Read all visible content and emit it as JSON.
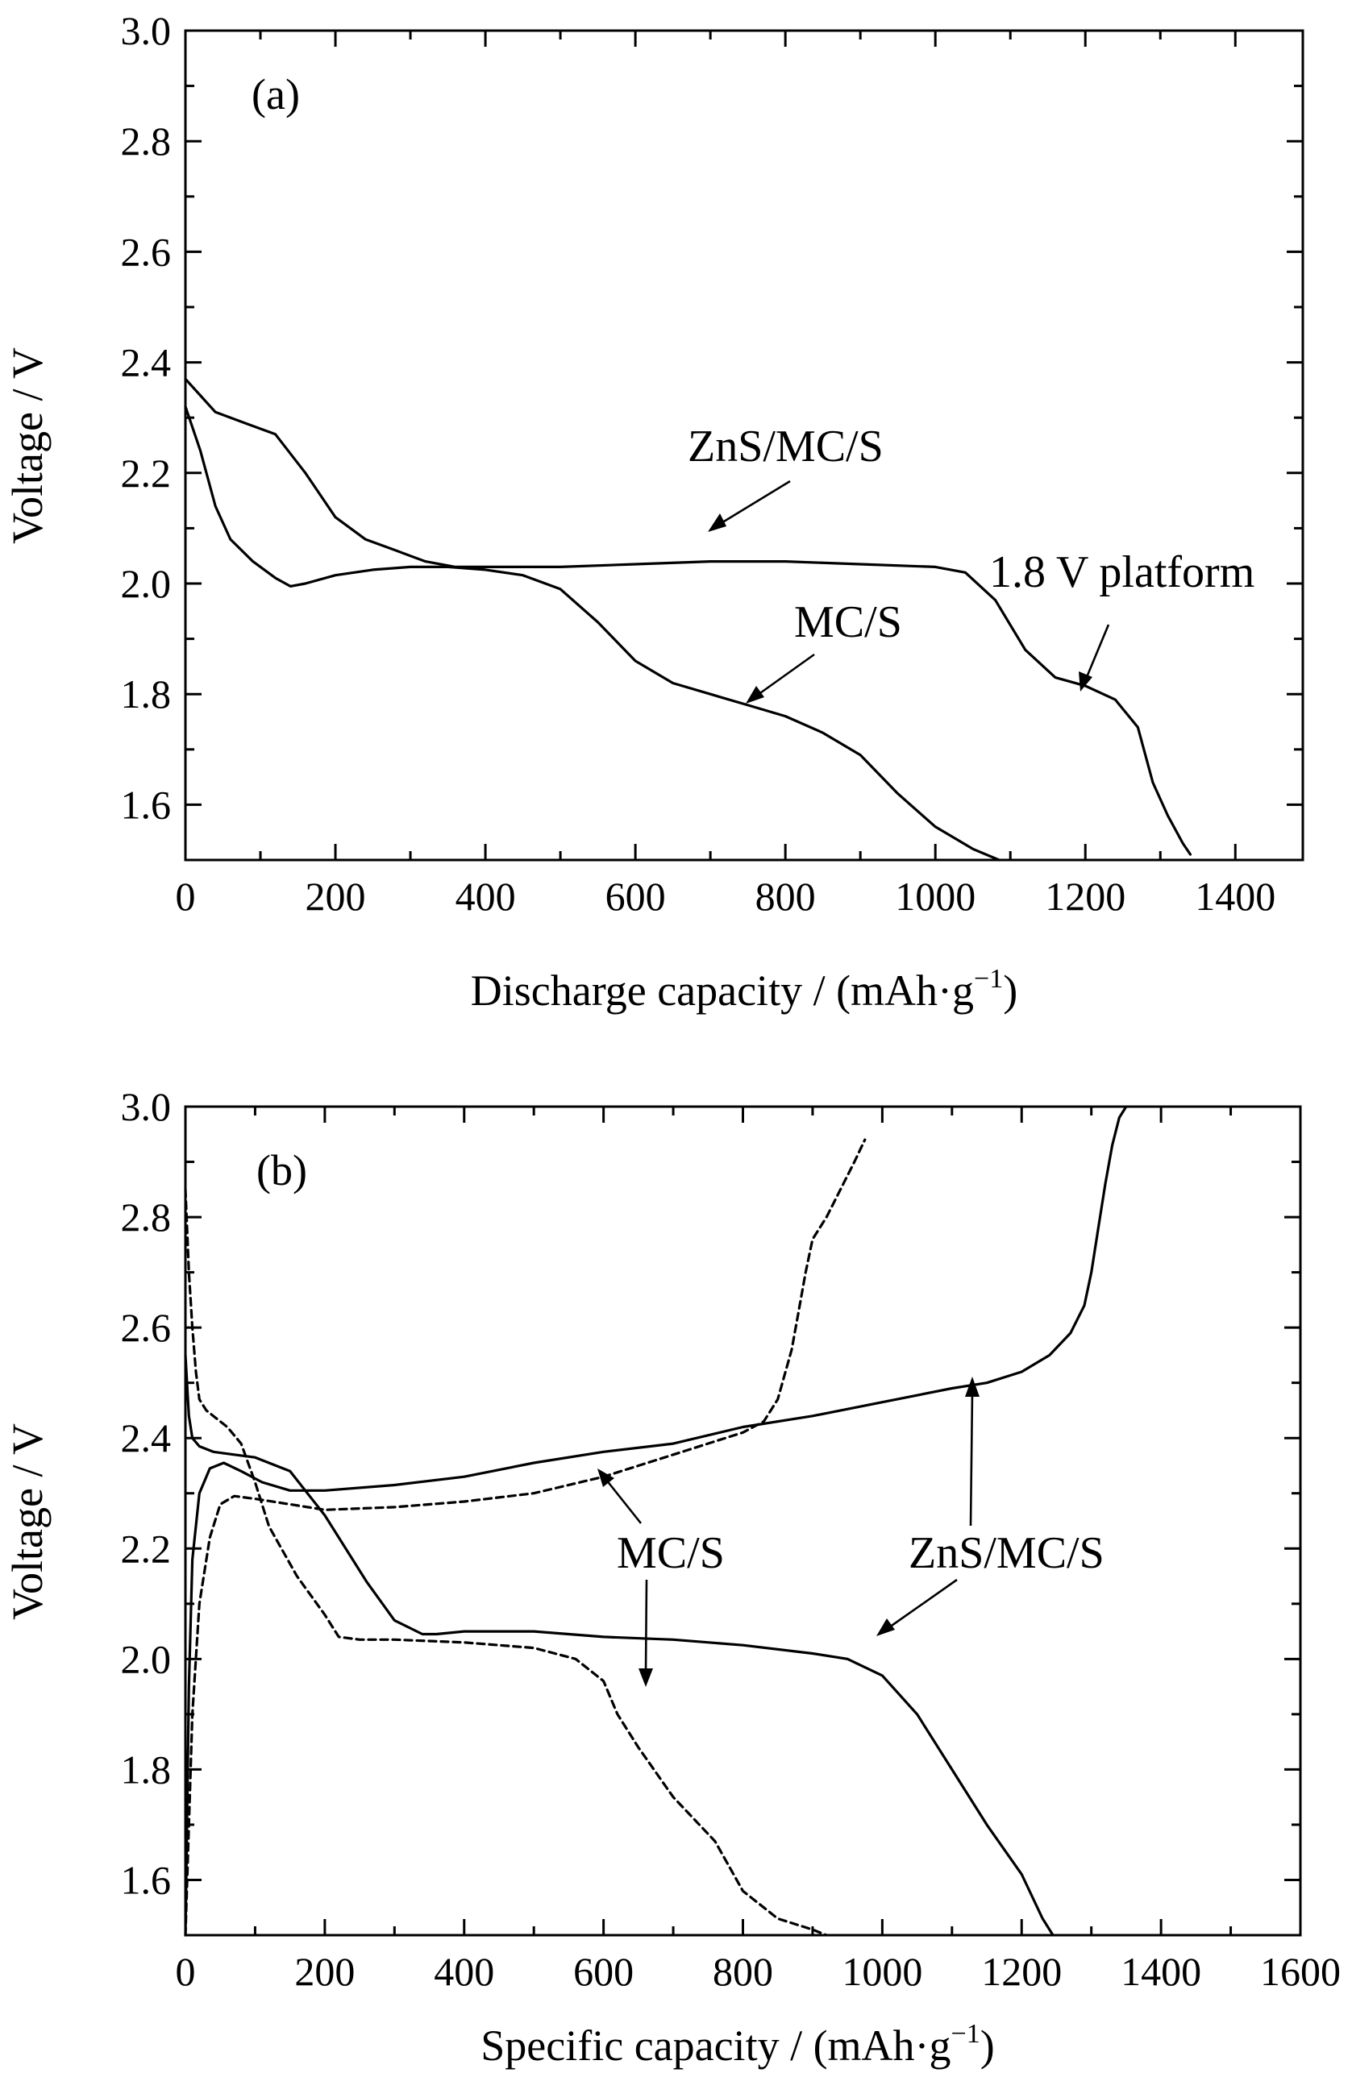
{
  "figure": {
    "panels": [
      {
        "id": "a",
        "panel_label": "(a)",
        "xlabel": "Discharge capacity / (mAh·g",
        "ylabel": "Voltage / V",
        "unit_sup": "−1",
        "unit_close": ")"
      },
      {
        "id": "b",
        "panel_label": "(b)",
        "xlabel": "Specific capacity / (mAh·g",
        "ylabel": "Voltage / V",
        "unit_sup": "−1",
        "unit_close": ")"
      }
    ]
  },
  "chart_data": [
    {
      "type": "line",
      "panel": "(a)",
      "xlabel": "Discharge capacity / (mAh·g⁻¹)",
      "ylabel": "Voltage / V",
      "xlim": [
        0,
        1490
      ],
      "ylim": [
        1.5,
        3.0
      ],
      "xticks": [
        0,
        200,
        400,
        600,
        800,
        1000,
        1200,
        1400
      ],
      "xtick_labels": [
        "0",
        "200",
        "400",
        "600",
        "800",
        "1000",
        "1200",
        "1400"
      ],
      "yticks": [
        1.6,
        1.8,
        2.0,
        2.2,
        2.4,
        2.6,
        2.8,
        3.0
      ],
      "ytick_labels": [
        "1.6",
        "1.8",
        "2.0",
        "2.2",
        "2.4",
        "2.6",
        "2.8",
        "3.0"
      ],
      "grid": false,
      "series": [
        {
          "name": "ZnS/MC/S",
          "style": "solid",
          "x": [
            0,
            40,
            80,
            120,
            160,
            200,
            240,
            280,
            320,
            360,
            400,
            500,
            600,
            700,
            800,
            900,
            1000,
            1040,
            1080,
            1120,
            1160,
            1200,
            1240,
            1270,
            1290,
            1310,
            1330,
            1340
          ],
          "y": [
            2.37,
            2.31,
            2.29,
            2.27,
            2.2,
            2.12,
            2.08,
            2.06,
            2.04,
            2.03,
            2.03,
            2.03,
            2.035,
            2.04,
            2.04,
            2.035,
            2.03,
            2.02,
            1.97,
            1.88,
            1.83,
            1.815,
            1.79,
            1.74,
            1.64,
            1.58,
            1.53,
            1.51
          ]
        },
        {
          "name": "MC/S",
          "style": "solid",
          "x": [
            0,
            20,
            40,
            60,
            90,
            120,
            140,
            160,
            200,
            250,
            300,
            350,
            400,
            450,
            500,
            550,
            600,
            650,
            700,
            750,
            800,
            850,
            900,
            950,
            1000,
            1050,
            1085
          ],
          "y": [
            2.32,
            2.24,
            2.14,
            2.08,
            2.04,
            2.01,
            1.995,
            2.0,
            2.015,
            2.025,
            2.03,
            2.03,
            2.025,
            2.015,
            1.99,
            1.93,
            1.86,
            1.82,
            1.8,
            1.78,
            1.76,
            1.73,
            1.69,
            1.62,
            1.56,
            1.52,
            1.5
          ]
        }
      ],
      "annotations": [
        "ZnS/MC/S",
        "MC/S",
        "1.8 V platform"
      ]
    },
    {
      "type": "line",
      "panel": "(b)",
      "xlabel": "Specific capacity / (mAh·g⁻¹)",
      "ylabel": "Voltage / V",
      "xlim": [
        0,
        1600
      ],
      "ylim": [
        1.5,
        3.0
      ],
      "xticks": [
        0,
        200,
        400,
        600,
        800,
        1000,
        1200,
        1400,
        1600
      ],
      "xtick_labels": [
        "0",
        "200",
        "400",
        "600",
        "800",
        "1000",
        "1200",
        "1400",
        "1600"
      ],
      "yticks": [
        1.6,
        1.8,
        2.0,
        2.2,
        2.4,
        2.6,
        2.8,
        3.0
      ],
      "ytick_labels": [
        "1.6",
        "1.8",
        "2.0",
        "2.2",
        "2.4",
        "2.6",
        "2.8",
        "3.0"
      ],
      "grid": false,
      "series": [
        {
          "name": "ZnS/MC/S",
          "style": "solid",
          "x": [
            0,
            5,
            10,
            20,
            40,
            70,
            100,
            150,
            200,
            260,
            300,
            340,
            360,
            400,
            500,
            600,
            700,
            800,
            900,
            950,
            1000,
            1050,
            1100,
            1150,
            1200,
            1230,
            1245
          ],
          "y": [
            2.55,
            2.44,
            2.4,
            2.385,
            2.375,
            2.37,
            2.365,
            2.34,
            2.26,
            2.14,
            2.07,
            2.045,
            2.045,
            2.05,
            2.05,
            2.04,
            2.035,
            2.025,
            2.01,
            2.0,
            1.97,
            1.9,
            1.8,
            1.7,
            1.61,
            1.53,
            1.5
          ]
        },
        {
          "name": "ZnS/MC/S",
          "style": "solid",
          "x": [
            0,
            5,
            10,
            20,
            35,
            55,
            80,
            110,
            150,
            200,
            300,
            400,
            500,
            600,
            700,
            800,
            900,
            1000,
            1100,
            1150,
            1200,
            1240,
            1270,
            1290,
            1300,
            1310,
            1320,
            1330,
            1340,
            1350
          ],
          "y": [
            1.5,
            1.95,
            2.18,
            2.3,
            2.345,
            2.355,
            2.34,
            2.32,
            2.305,
            2.305,
            2.315,
            2.33,
            2.355,
            2.375,
            2.39,
            2.42,
            2.44,
            2.465,
            2.49,
            2.5,
            2.52,
            2.55,
            2.59,
            2.64,
            2.7,
            2.78,
            2.86,
            2.93,
            2.98,
            3.0
          ]
        },
        {
          "name": "MC/S",
          "style": "dashed",
          "x": [
            0,
            5,
            10,
            15,
            20,
            30,
            45,
            60,
            80,
            100,
            120,
            160,
            200,
            220,
            250,
            300,
            400,
            500,
            560,
            600,
            620,
            650,
            700,
            760,
            800,
            850,
            900,
            920
          ],
          "y": [
            2.85,
            2.7,
            2.6,
            2.52,
            2.47,
            2.45,
            2.435,
            2.42,
            2.39,
            2.32,
            2.24,
            2.15,
            2.08,
            2.04,
            2.035,
            2.035,
            2.03,
            2.02,
            2.0,
            1.96,
            1.9,
            1.84,
            1.75,
            1.67,
            1.58,
            1.53,
            1.51,
            1.5
          ]
        },
        {
          "name": "MC/S",
          "style": "dashed",
          "x": [
            0,
            10,
            20,
            35,
            50,
            70,
            100,
            150,
            200,
            300,
            400,
            500,
            600,
            700,
            800,
            830,
            850,
            870,
            880,
            890,
            900,
            920,
            940,
            960,
            975
          ],
          "y": [
            1.5,
            1.9,
            2.1,
            2.22,
            2.28,
            2.295,
            2.29,
            2.28,
            2.27,
            2.275,
            2.285,
            2.3,
            2.33,
            2.37,
            2.41,
            2.43,
            2.47,
            2.56,
            2.63,
            2.7,
            2.76,
            2.8,
            2.85,
            2.9,
            2.94
          ]
        }
      ],
      "annotations": [
        "MC/S",
        "ZnS/MC/S"
      ]
    }
  ]
}
